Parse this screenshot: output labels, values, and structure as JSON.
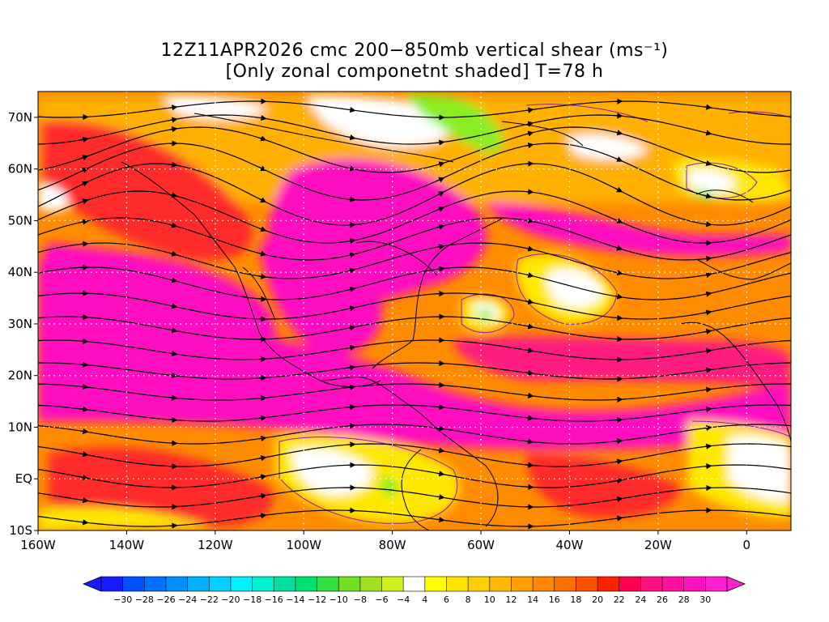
{
  "title_line1": "12Z11APR2026 cmc 200−850mb vertical shear (ms⁻¹)",
  "title_line2": "[Only zonal componetnt shaded] T=78 h",
  "lon_labels": [
    "160W",
    "140W",
    "120W",
    "100W",
    "80W",
    "60W",
    "40W",
    "20W",
    "0"
  ],
  "lat_labels": [
    "70N",
    "60N",
    "50N",
    "40N",
    "30N",
    "20N",
    "10N",
    "EQ",
    "10S"
  ],
  "colorbar_labels": [
    "−30",
    "−28",
    "−26",
    "−24",
    "−22",
    "−20",
    "−18",
    "−16",
    "−14",
    "−12",
    "−10",
    "−8",
    "−6",
    "−4",
    "4",
    "6",
    "8",
    "10",
    "12",
    "14",
    "16",
    "18",
    "20",
    "22",
    "24",
    "26",
    "28",
    "30"
  ],
  "colorbar_colors": [
    "#1a1aff",
    "#0050ff",
    "#0070ff",
    "#0090ff",
    "#00b0ff",
    "#00d0ff",
    "#00f0ff",
    "#00f0d0",
    "#00e0a0",
    "#00e070",
    "#30e040",
    "#70e020",
    "#a0e020",
    "#d0f020",
    "#ffffff",
    "#ffff00",
    "#ffe400",
    "#ffd000",
    "#ffb800",
    "#ffa000",
    "#ff8800",
    "#ff7000",
    "#ff5000",
    "#ff2000",
    "#ff0050",
    "#ff1080",
    "#ff10a0",
    "#ff10c0",
    "#ff20d0"
  ],
  "colors": {
    "magenta": "#ff10c0",
    "hotpink": "#ff1a80",
    "red": "#ff2a2a",
    "orange": "#ff8c00",
    "lightorange": "#ffb000",
    "yellow": "#ffe800",
    "green": "#88ee22",
    "white": "#ffffff"
  }
}
